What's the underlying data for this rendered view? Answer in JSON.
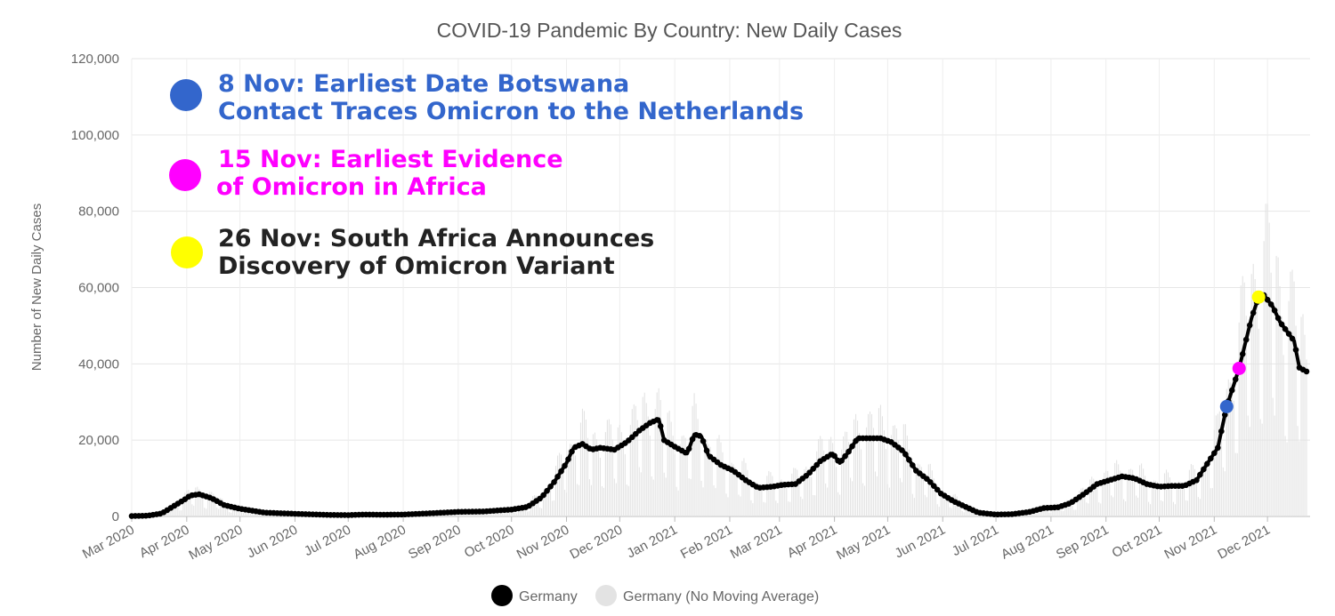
{
  "chart_data": {
    "type": "line",
    "title": "COVID-19 Pandemic By Country: New Daily Cases",
    "xlabel": "",
    "ylabel": "Number of New Daily Cases",
    "ylim": [
      0,
      120000
    ],
    "yticks": [
      0,
      20000,
      40000,
      60000,
      80000,
      100000,
      120000
    ],
    "ytick_labels": [
      "0",
      "20,000",
      "40,000",
      "60,000",
      "80,000",
      "100,000",
      "120,000"
    ],
    "xlim": [
      "2020-03-01",
      "2021-12-25"
    ],
    "xticks": [
      "2020-03-01",
      "2020-04-01",
      "2020-05-01",
      "2020-06-01",
      "2020-07-01",
      "2020-08-01",
      "2020-09-01",
      "2020-10-01",
      "2020-11-01",
      "2020-12-01",
      "2021-01-01",
      "2021-02-01",
      "2021-03-01",
      "2021-04-01",
      "2021-05-01",
      "2021-06-01",
      "2021-07-01",
      "2021-08-01",
      "2021-09-01",
      "2021-10-01",
      "2021-11-01",
      "2021-12-01"
    ],
    "xtick_labels": [
      "Mar 2020",
      "Apr 2020",
      "May 2020",
      "Jun 2020",
      "Jul 2020",
      "Aug 2020",
      "Sep 2020",
      "Oct 2020",
      "Nov 2020",
      "Dec 2020",
      "Jan 2021",
      "Feb 2021",
      "Mar 2021",
      "Apr 2021",
      "May 2021",
      "Jun 2021",
      "Jul 2021",
      "Aug 2021",
      "Sep 2021",
      "Oct 2021",
      "Nov 2021",
      "Dec 2021"
    ],
    "grid": true,
    "legend_position": "bottom",
    "series": [
      {
        "name": "Germany",
        "color": "#000000",
        "style": "line-with-markers",
        "points": [
          [
            "2020-03-01",
            100
          ],
          [
            "2020-03-10",
            200
          ],
          [
            "2020-03-18",
            800
          ],
          [
            "2020-03-25",
            2800
          ],
          [
            "2020-03-31",
            4500
          ],
          [
            "2020-04-03",
            5500
          ],
          [
            "2020-04-08",
            5800
          ],
          [
            "2020-04-15",
            4800
          ],
          [
            "2020-04-22",
            3000
          ],
          [
            "2020-05-01",
            2000
          ],
          [
            "2020-05-15",
            1000
          ],
          [
            "2020-06-01",
            700
          ],
          [
            "2020-06-20",
            400
          ],
          [
            "2020-07-01",
            350
          ],
          [
            "2020-07-10",
            500
          ],
          [
            "2020-07-20",
            450
          ],
          [
            "2020-08-01",
            500
          ],
          [
            "2020-08-15",
            800
          ],
          [
            "2020-09-01",
            1200
          ],
          [
            "2020-09-15",
            1300
          ],
          [
            "2020-10-01",
            1800
          ],
          [
            "2020-10-10",
            2500
          ],
          [
            "2020-10-18",
            5000
          ],
          [
            "2020-10-25",
            9000
          ],
          [
            "2020-11-01",
            14000
          ],
          [
            "2020-11-05",
            18000
          ],
          [
            "2020-11-10",
            19000
          ],
          [
            "2020-11-15",
            17500
          ],
          [
            "2020-11-20",
            18000
          ],
          [
            "2020-11-28",
            17500
          ],
          [
            "2020-12-05",
            19500
          ],
          [
            "2020-12-12",
            22500
          ],
          [
            "2020-12-18",
            24500
          ],
          [
            "2020-12-23",
            25500
          ],
          [
            "2020-12-26",
            20000
          ],
          [
            "2021-01-02",
            18000
          ],
          [
            "2021-01-08",
            16500
          ],
          [
            "2021-01-12",
            21500
          ],
          [
            "2021-01-16",
            21000
          ],
          [
            "2021-01-20",
            16000
          ],
          [
            "2021-01-27",
            13500
          ],
          [
            "2021-02-03",
            12000
          ],
          [
            "2021-02-10",
            9500
          ],
          [
            "2021-02-17",
            7500
          ],
          [
            "2021-02-25",
            7800
          ],
          [
            "2021-03-03",
            8300
          ],
          [
            "2021-03-10",
            8500
          ],
          [
            "2021-03-17",
            11000
          ],
          [
            "2021-03-24",
            14500
          ],
          [
            "2021-03-31",
            16500
          ],
          [
            "2021-04-04",
            14000
          ],
          [
            "2021-04-09",
            17000
          ],
          [
            "2021-04-14",
            20500
          ],
          [
            "2021-04-20",
            20500
          ],
          [
            "2021-04-27",
            20500
          ],
          [
            "2021-05-03",
            19500
          ],
          [
            "2021-05-10",
            17000
          ],
          [
            "2021-05-17",
            12000
          ],
          [
            "2021-05-24",
            9500
          ],
          [
            "2021-05-31",
            6000
          ],
          [
            "2021-06-07",
            4000
          ],
          [
            "2021-06-14",
            2500
          ],
          [
            "2021-06-21",
            1000
          ],
          [
            "2021-07-01",
            500
          ],
          [
            "2021-07-10",
            600
          ],
          [
            "2021-07-20",
            1200
          ],
          [
            "2021-07-28",
            2200
          ],
          [
            "2021-08-05",
            2400
          ],
          [
            "2021-08-12",
            3500
          ],
          [
            "2021-08-20",
            6000
          ],
          [
            "2021-08-27",
            8500
          ],
          [
            "2021-09-03",
            9500
          ],
          [
            "2021-09-10",
            10500
          ],
          [
            "2021-09-17",
            10000
          ],
          [
            "2021-09-24",
            8500
          ],
          [
            "2021-10-01",
            7800
          ],
          [
            "2021-10-08",
            8000
          ],
          [
            "2021-10-15",
            8000
          ],
          [
            "2021-10-22",
            9500
          ],
          [
            "2021-10-29",
            14500
          ],
          [
            "2021-11-03",
            18000
          ],
          [
            "2021-11-08",
            28800
          ],
          [
            "2021-11-15",
            38800
          ],
          [
            "2021-11-22",
            52000
          ],
          [
            "2021-11-26",
            57500
          ],
          [
            "2021-11-29",
            58000
          ],
          [
            "2021-12-04",
            55000
          ],
          [
            "2021-12-08",
            51000
          ],
          [
            "2021-12-12",
            48500
          ],
          [
            "2021-12-16",
            46000
          ],
          [
            "2021-12-19",
            39000
          ],
          [
            "2021-12-23",
            38000
          ]
        ]
      },
      {
        "name": "Germany (No Moving Average)",
        "color": "#e3e3e3",
        "style": "daily-bars"
      }
    ],
    "highlight_points": [
      {
        "date": "2021-11-08",
        "value": 28800,
        "color": "#3366cc"
      },
      {
        "date": "2021-11-15",
        "value": 38800,
        "color": "#ff00ff"
      },
      {
        "date": "2021-11-26",
        "value": 57500,
        "color": "#ffff00"
      }
    ],
    "annotations": [
      {
        "color": "#3366cc",
        "lines": [
          "8 Nov: Earliest Date Botswana",
          "Contact Traces Omicron to the Netherlands"
        ]
      },
      {
        "color": "#ff00ff",
        "lines": [
          "15 Nov: Earliest Evidence",
          "of Omicron in Africa"
        ]
      },
      {
        "color": "#ffff00",
        "text_color": "#222222",
        "lines": [
          "26 Nov: South Africa Announces",
          "Discovery of Omicron Variant"
        ]
      }
    ]
  }
}
